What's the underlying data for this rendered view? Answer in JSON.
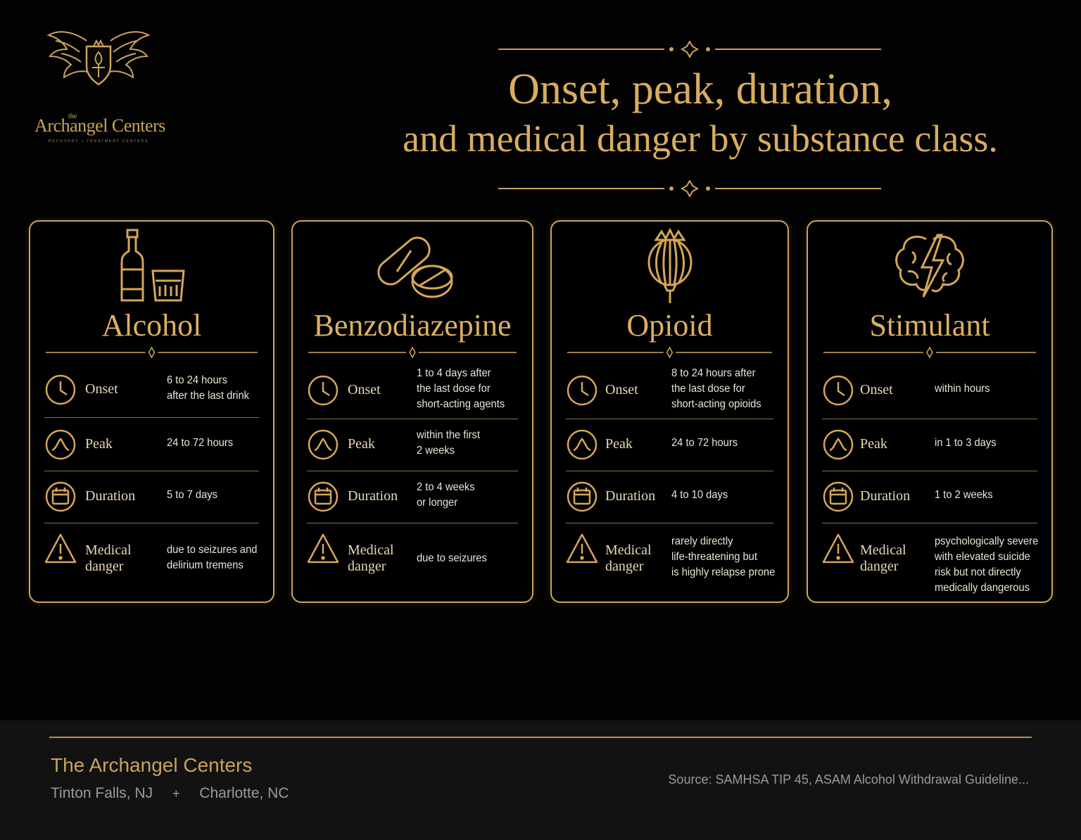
{
  "logo": {
    "small_text": "the",
    "name": "Archangel Centers",
    "tagline": "RECOVERY + TREATMENT CENTERS",
    "icon": "winged-shield-logo"
  },
  "title": {
    "line1": "Onset, peak, duration,",
    "line2": "and medical danger by substance class."
  },
  "colors": {
    "gold": "#d9ad5d",
    "background": "#020202",
    "footer": "#121212"
  },
  "cards": [
    {
      "title": "Alcohol",
      "icon": "bottle-and-glass-icon",
      "rows": [
        {
          "label": "Onset",
          "icon": "clock-icon",
          "value": [
            "6 to 24 hours",
            "after the last drink"
          ]
        },
        {
          "label": "Peak",
          "icon": "peak-icon",
          "value": [
            "24 to 72 hours"
          ]
        },
        {
          "label": "Duration",
          "icon": "calendar-icon",
          "value": [
            "5 to 7 days"
          ]
        },
        {
          "label": "Medical danger",
          "icon": "warning-icon",
          "value": [
            "due to seizures and",
            "delirium tremens"
          ]
        }
      ]
    },
    {
      "title": "Benzodiazepine",
      "icon": "pills-icon",
      "rows": [
        {
          "label": "Onset",
          "icon": "clock-icon",
          "value": [
            "1 to 4 days after",
            "the last dose for",
            "short-acting agents"
          ]
        },
        {
          "label": "Peak",
          "icon": "peak-icon",
          "value": [
            "within the first",
            "2 weeks"
          ]
        },
        {
          "label": "Duration",
          "icon": "calendar-icon",
          "value": [
            "2 to 4 weeks",
            "or longer"
          ]
        },
        {
          "label": "Medical danger",
          "icon": "warning-icon",
          "value": [
            "due to seizures"
          ]
        }
      ]
    },
    {
      "title": "Opioid",
      "icon": "poppy-pod-icon",
      "rows": [
        {
          "label": "Onset",
          "icon": "clock-icon",
          "value": [
            "8 to 24 hours after",
            "the last dose for",
            "short-acting opioids"
          ]
        },
        {
          "label": "Peak",
          "icon": "peak-icon",
          "value": [
            "24 to 72 hours"
          ]
        },
        {
          "label": "Duration",
          "icon": "calendar-icon",
          "value": [
            "4 to 10 days"
          ]
        },
        {
          "label": "Medical danger",
          "icon": "warning-icon",
          "value": [
            "rarely directly",
            "life-threatening but",
            "is highly relapse prone"
          ]
        }
      ]
    },
    {
      "title": "Stimulant",
      "icon": "brain-lightning-icon",
      "rows": [
        {
          "label": "Onset",
          "icon": "clock-icon",
          "value": [
            "within hours"
          ]
        },
        {
          "label": "Peak",
          "icon": "peak-icon",
          "value": [
            "in 1 to 3 days"
          ]
        },
        {
          "label": "Duration",
          "icon": "calendar-icon",
          "value": [
            "1 to 2 weeks"
          ]
        },
        {
          "label": "Medical danger",
          "icon": "warning-icon",
          "value": [
            "psychologically severe",
            "with elevated suicide",
            "risk but not directly",
            "medically dangerous"
          ]
        }
      ]
    }
  ],
  "footer": {
    "brand": "The Archangel Centers",
    "location1": "Tinton Falls, NJ",
    "separator": "+",
    "location2": "Charlotte, NC",
    "source": "Source: SAMHSA TIP 45, ASAM Alcohol Withdrawal Guideline..."
  }
}
